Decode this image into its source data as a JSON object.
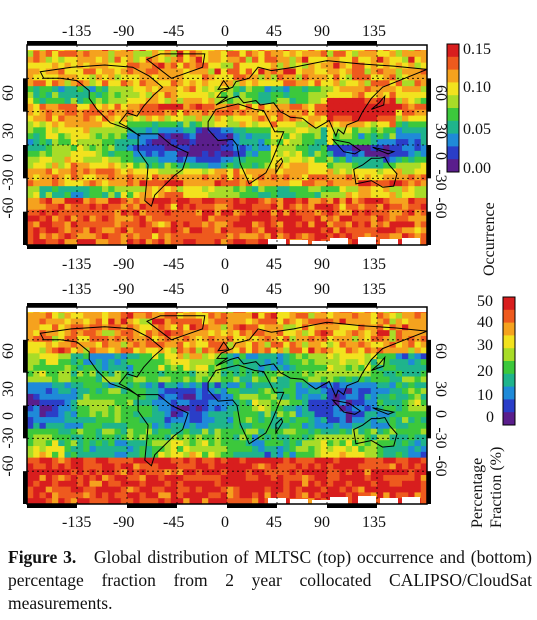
{
  "figure": {
    "top_panel": {
      "lon_ticks": [
        "-135",
        "-90",
        "-45",
        "0",
        "45",
        "90",
        "135"
      ],
      "lat_ticks": [
        "-60",
        "-30",
        "0",
        "30",
        "60"
      ],
      "colorbar_ticks": [
        "0.15",
        "0.10",
        "0.05",
        "0.00"
      ],
      "colorbar_title": "Occurrence",
      "colorbar_range": [
        0.0,
        0.15
      ]
    },
    "bottom_panel": {
      "lon_ticks": [
        "-135",
        "-90",
        "-45",
        "0",
        "45",
        "90",
        "135"
      ],
      "lat_ticks": [
        "-60",
        "-30",
        "0",
        "30",
        "60"
      ],
      "colorbar_ticks": [
        "50",
        "40",
        "30",
        "20",
        "10",
        "0"
      ],
      "colorbar_title_line1": "Percentage",
      "colorbar_title_line2": "Fraction (%)",
      "colorbar_range": [
        0,
        50
      ]
    },
    "colormap": [
      "#5a1e8c",
      "#2a3ec8",
      "#1f8ad8",
      "#1fb48c",
      "#3cc83c",
      "#a8dc28",
      "#f2e21e",
      "#f5a21e",
      "#ee5a1e",
      "#d81e1e"
    ],
    "caption": {
      "label": "Figure 3.",
      "text": "Global distribution of MLTSC (top) occurrence and (bottom) percentage fraction from 2 year collocated CALIPSO/CloudSat measurements."
    }
  }
}
